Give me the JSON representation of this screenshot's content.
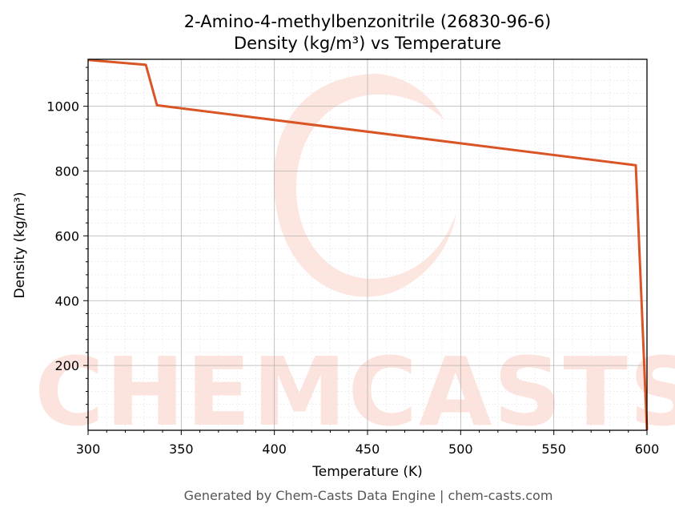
{
  "chart_data": {
    "type": "line",
    "title_line1": "2-Amino-4-methylbenzonitrile (26830-96-6)",
    "title_line2": "Density (kg/m³) vs Temperature",
    "xlabel": "Temperature (K)",
    "ylabel": "Density (kg/m³)",
    "xlim": [
      300,
      600
    ],
    "ylim": [
      0,
      1145
    ],
    "xticks": [
      300,
      350,
      400,
      450,
      500,
      550,
      600
    ],
    "yticks": [
      200,
      400,
      600,
      800,
      1000
    ],
    "grid": true,
    "series": [
      {
        "color": "#d95525",
        "x": [
          300,
          331,
          337,
          594,
          600
        ],
        "y": [
          1143,
          1128,
          1003,
          818,
          0
        ]
      }
    ]
  },
  "watermark": "CHEMCASTS",
  "footer": "Generated by Chem-Casts Data Engine | chem-casts.com"
}
